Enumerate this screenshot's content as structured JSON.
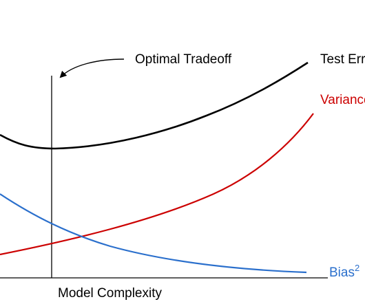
{
  "annotation": {
    "text": "Optimal Tradeoff"
  },
  "x_axis": {
    "label": "Model Complexity"
  },
  "curves": {
    "test_error": {
      "label": "Test Error",
      "color": "#000000"
    },
    "variance": {
      "label": "Variance",
      "color": "#cc0000"
    },
    "bias": {
      "label": "Bias",
      "superscript": "2",
      "color": "#2a6fcc"
    }
  }
}
